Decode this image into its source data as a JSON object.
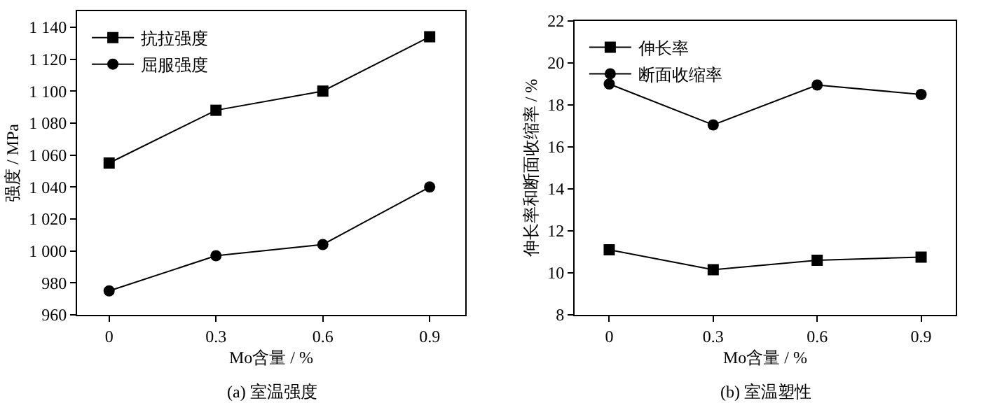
{
  "chart_data": [
    {
      "type": "line",
      "title": "(a) 室温强度",
      "xlabel": "Mo含量 / %",
      "ylabel": "强度 / MPa",
      "x": [
        0,
        0.3,
        0.6,
        0.9
      ],
      "xlim": [
        -0.09,
        1.0
      ],
      "xticks": [
        0,
        0.3,
        0.6,
        0.9
      ],
      "ylim": [
        960,
        1150
      ],
      "yticks": [
        960,
        980,
        {
          "value": 1000,
          "label": "1 000"
        },
        {
          "value": 1020,
          "label": "1 020"
        },
        {
          "value": 1040,
          "label": "1 040"
        },
        {
          "value": 1060,
          "label": "1 060"
        },
        {
          "value": 1080,
          "label": "1 080"
        },
        {
          "value": 1100,
          "label": "1 100"
        },
        {
          "value": 1120,
          "label": "1 120"
        },
        {
          "value": 1140,
          "label": "1 140"
        }
      ],
      "legend": "top left",
      "grid": false,
      "line_style": "solid",
      "series": [
        {
          "name": "抗拉强度",
          "color": "#000000",
          "marker": "square",
          "values": [
            1055,
            1088,
            1100,
            1134
          ]
        },
        {
          "name": "屈服强度",
          "color": "#000000",
          "marker": "circle",
          "values": [
            975,
            997,
            1004,
            1040
          ]
        }
      ]
    },
    {
      "type": "line",
      "title": "(b) 室温塑性",
      "xlabel": "Mo含量 / %",
      "ylabel": "伸长率和断面收缩率 / %",
      "x": [
        0,
        0.3,
        0.6,
        0.9
      ],
      "xlim": [
        -0.1,
        1.0
      ],
      "xticks": [
        0,
        0.3,
        0.6,
        0.9
      ],
      "ylim": [
        8,
        22
      ],
      "yticks": [
        8,
        10,
        12,
        14,
        16,
        18,
        20,
        22
      ],
      "legend": "top left",
      "grid": false,
      "line_style": "solid",
      "series": [
        {
          "name": "伸长率",
          "color": "#000000",
          "marker": "square",
          "values": [
            11.1,
            10.15,
            10.6,
            10.75
          ]
        },
        {
          "name": "断面收缩率",
          "color": "#000000",
          "marker": "circle",
          "values": [
            19.0,
            17.05,
            18.95,
            18.5
          ]
        }
      ]
    }
  ]
}
